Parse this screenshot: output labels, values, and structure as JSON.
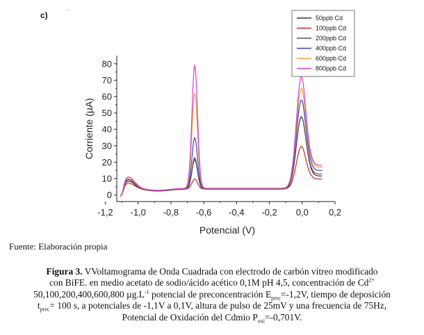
{
  "panel_label": "c)",
  "source_note": "Fuente: Elaboración propia",
  "caption": {
    "bold_prefix": "Figura 3.",
    "line1_rest": " VVoltamograma de Onda Cuadrada con electrodo de  carbón vítreo modificado",
    "line2_text": "con BiFE. en medio acetato de sodio/ácido acético  0,1M pH 4,5, concentración de Cd",
    "line2_sup": "2+",
    "line3_a": "50,100,200,400,600,800 µg.L",
    "line3_sup": "-1",
    "line3_b": " potencial de preconcentración E",
    "line3_sub": "prec",
    "line3_c": "=-1,2V, tiempo de deposición",
    "line4_a": "t",
    "line4_sub": "prec",
    "line4_b": "= 100 s, a potenciales de -1,1V a 0,1V, altura de pulso de 25mV y una frecuencia de 75Hz,",
    "line5_a": "Potencial de Oxidación del Cdmio P",
    "line5_sub": "oxi",
    "line5_b": "=-0,701V."
  },
  "chart_data": {
    "type": "line",
    "xlabel": "Potencial (V)",
    "ylabel": "Corriente (µA)",
    "xlim": [
      -1.13,
      0.2
    ],
    "ylim": [
      -4,
      85
    ],
    "x_ticks": [
      -1.2,
      -1.0,
      -0.8,
      -0.6,
      -0.4,
      -0.2,
      0.0,
      0.2
    ],
    "x_tick_labels": [
      "-1,2",
      "-1,0",
      "-0,8",
      "-0,6",
      "-0,4",
      "-0,2",
      "0,0",
      "0,2"
    ],
    "y_ticks": [
      0,
      10,
      20,
      30,
      40,
      50,
      60,
      70,
      80
    ],
    "y_tick_labels": [
      "0",
      "10",
      "20",
      "30",
      "40",
      "50",
      "60",
      "70",
      "80"
    ],
    "grid": false,
    "legend_position": "top-right",
    "series": [
      {
        "name": "50ppb Cd",
        "color": "#333333",
        "peak1_y": 22,
        "peak2_y": 48,
        "tail_y": 12,
        "shoulder_y": 7
      },
      {
        "name": "100ppb Cd",
        "color": "#c82828",
        "peak1_y": 10,
        "peak2_y": 30,
        "tail_y": 10,
        "shoulder_y": 5
      },
      {
        "name": "200ppb Cd",
        "color": "#555555",
        "peak1_y": 23,
        "peak2_y": 48,
        "tail_y": 13,
        "shoulder_y": 7
      },
      {
        "name": "400ppb Cd",
        "color": "#3344bb",
        "peak1_y": 35,
        "peak2_y": 58,
        "tail_y": 15,
        "shoulder_y": 8
      },
      {
        "name": "600ppb Cd",
        "color": "#f0a030",
        "peak1_y": 62,
        "peak2_y": 65,
        "tail_y": 17,
        "shoulder_y": 9
      },
      {
        "name": "800ppb Cd",
        "color": "#d040d0",
        "peak1_y": 79,
        "peak2_y": 72,
        "tail_y": 18,
        "shoulder_y": 10
      }
    ]
  }
}
